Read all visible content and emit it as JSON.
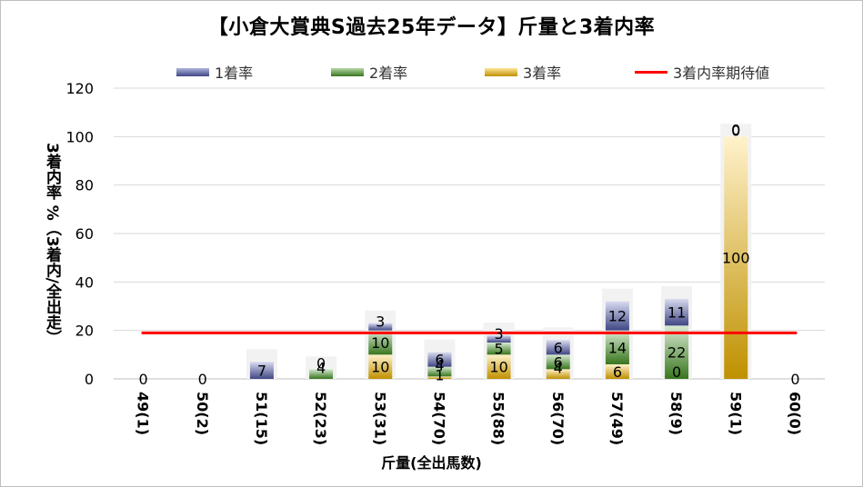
{
  "title": "【小倉大賞典S過去25年データ】斤量と3着内率",
  "chart_data": {
    "type": "bar",
    "stacked": true,
    "title": "【小倉大賞典S過去25年データ】斤量と3着内率",
    "xlabel": "斤量(全出馬数)",
    "ylabel": "3着内率 %（3着内/全出走）",
    "ylim": [
      0,
      120
    ],
    "yticks": [
      0,
      20,
      40,
      60,
      80,
      100,
      120
    ],
    "grid": true,
    "legend_position": "top",
    "categories": [
      "49(1)",
      "50(2)",
      "51(15)",
      "52(23)",
      "53(31)",
      "54(70)",
      "55(88)",
      "56(70)",
      "57(49)",
      "58(9)",
      "59(1)",
      "60(0)"
    ],
    "series": [
      {
        "name": "3着率",
        "color": "#c89a2a",
        "values": [
          0,
          0,
          0,
          0,
          10,
          1,
          10,
          4,
          6,
          0,
          100,
          0
        ]
      },
      {
        "name": "2着率",
        "color": "#6aa84f",
        "values": [
          0,
          0,
          0,
          4,
          10,
          4,
          5,
          6,
          14,
          22,
          0,
          0
        ]
      },
      {
        "name": "1着率",
        "color": "#7b83bd",
        "values": [
          0,
          0,
          7,
          0,
          3,
          6,
          3,
          6,
          12,
          11,
          0,
          0
        ]
      }
    ],
    "reference_line": {
      "name": "3着内率期待値",
      "color": "#ff0000",
      "value": 19
    }
  }
}
